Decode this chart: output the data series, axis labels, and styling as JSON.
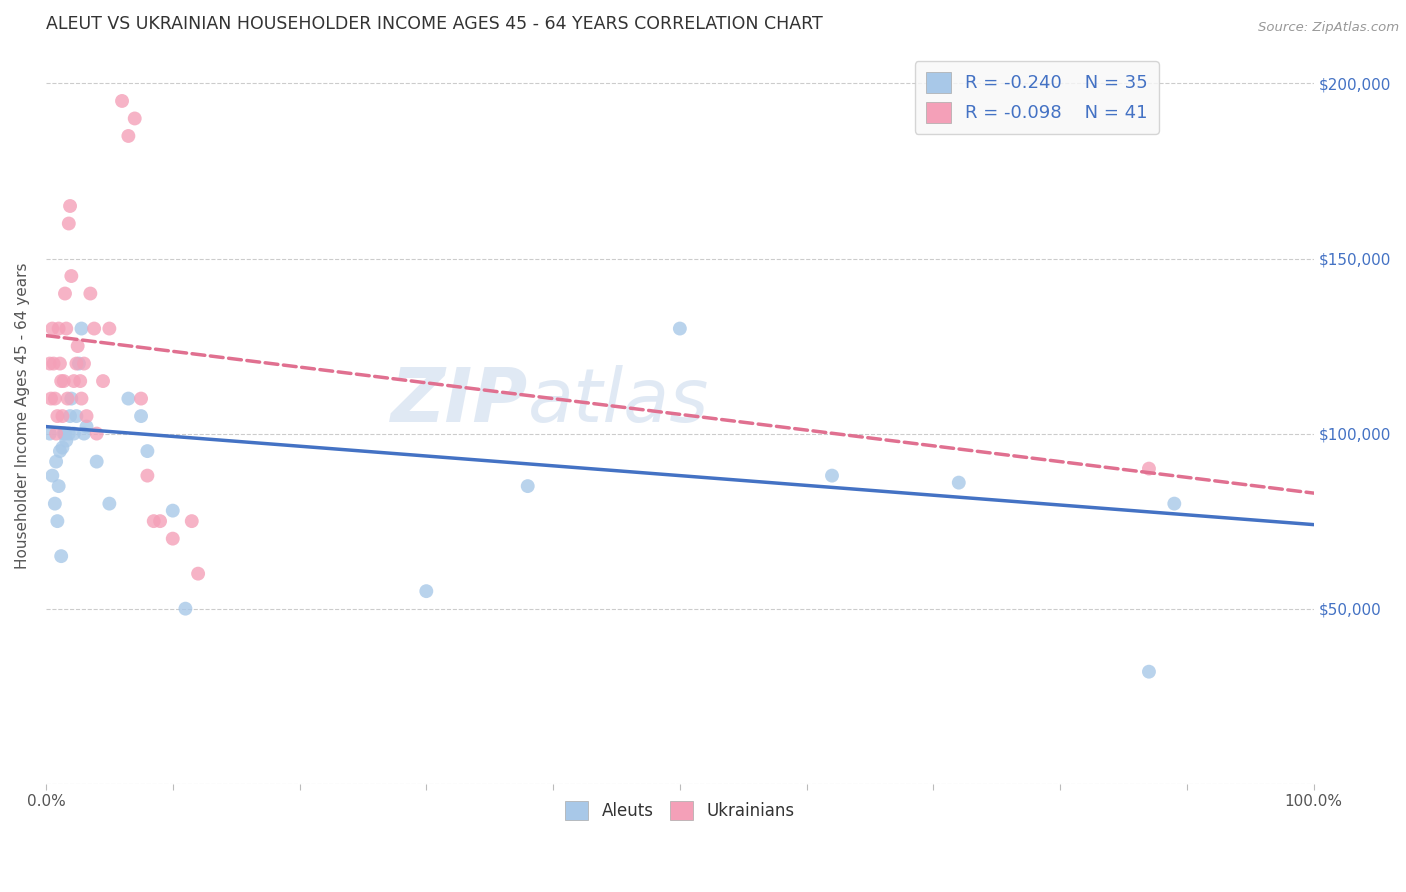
{
  "title": "ALEUT VS UKRAINIAN HOUSEHOLDER INCOME AGES 45 - 64 YEARS CORRELATION CHART",
  "source": "Source: ZipAtlas.com",
  "ylabel": "Householder Income Ages 45 - 64 years",
  "watermark_zip": "ZIP",
  "watermark_atlas": "atlas",
  "xlim": [
    0,
    1.0
  ],
  "ylim": [
    0,
    210000
  ],
  "xticks": [
    0.0,
    0.1,
    0.2,
    0.3,
    0.4,
    0.5,
    0.6,
    0.7,
    0.8,
    0.9,
    1.0
  ],
  "xticklabels": [
    "0.0%",
    "",
    "",
    "",
    "",
    "",
    "",
    "",
    "",
    "",
    "100.0%"
  ],
  "yticks": [
    0,
    50000,
    100000,
    150000,
    200000
  ],
  "legend_r_aleuts": "-0.240",
  "legend_n_aleuts": "35",
  "legend_r_ukrainians": "-0.098",
  "legend_n_ukrainians": "41",
  "aleuts_color": "#a8c8e8",
  "ukrainians_color": "#f4a0b8",
  "line_aleuts_color": "#4472c4",
  "line_ukrainians_color": "#e07090",
  "aleuts_x": [
    0.003,
    0.005,
    0.007,
    0.008,
    0.009,
    0.01,
    0.011,
    0.012,
    0.013,
    0.014,
    0.015,
    0.016,
    0.018,
    0.019,
    0.02,
    0.022,
    0.024,
    0.026,
    0.028,
    0.03,
    0.032,
    0.04,
    0.05,
    0.065,
    0.075,
    0.08,
    0.1,
    0.11,
    0.3,
    0.38,
    0.5,
    0.62,
    0.72,
    0.87,
    0.89
  ],
  "aleuts_y": [
    100000,
    88000,
    80000,
    92000,
    75000,
    85000,
    95000,
    65000,
    96000,
    100000,
    100000,
    98000,
    100000,
    105000,
    110000,
    100000,
    105000,
    120000,
    130000,
    100000,
    102000,
    92000,
    80000,
    110000,
    105000,
    95000,
    78000,
    50000,
    55000,
    85000,
    130000,
    88000,
    86000,
    32000,
    80000
  ],
  "ukrainians_x": [
    0.003,
    0.004,
    0.005,
    0.006,
    0.007,
    0.008,
    0.009,
    0.01,
    0.011,
    0.012,
    0.013,
    0.014,
    0.015,
    0.016,
    0.017,
    0.018,
    0.019,
    0.02,
    0.022,
    0.024,
    0.025,
    0.027,
    0.028,
    0.03,
    0.032,
    0.035,
    0.038,
    0.04,
    0.045,
    0.05,
    0.06,
    0.065,
    0.07,
    0.075,
    0.08,
    0.085,
    0.09,
    0.1,
    0.115,
    0.12,
    0.87
  ],
  "ukrainians_y": [
    120000,
    110000,
    130000,
    120000,
    110000,
    100000,
    105000,
    130000,
    120000,
    115000,
    105000,
    115000,
    140000,
    130000,
    110000,
    160000,
    165000,
    145000,
    115000,
    120000,
    125000,
    115000,
    110000,
    120000,
    105000,
    140000,
    130000,
    100000,
    115000,
    130000,
    195000,
    185000,
    190000,
    110000,
    88000,
    75000,
    75000,
    70000,
    75000,
    60000,
    90000
  ],
  "background_color": "#ffffff",
  "grid_color": "#cccccc",
  "title_color": "#333333",
  "right_label_color": "#4472c4",
  "left_tick_color": "#888888",
  "marker_size": 100,
  "line_aleuts_intercept": 102000,
  "line_aleuts_slope": -28000,
  "line_ukrainians_intercept": 128000,
  "line_ukrainians_slope": -45000
}
